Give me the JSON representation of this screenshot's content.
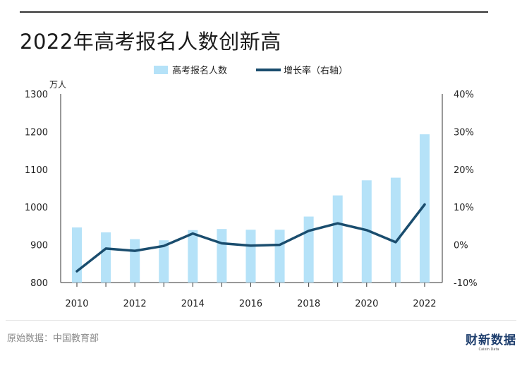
{
  "title": "2022年高考报名人数创新高",
  "source": "原始数据：中国教育部",
  "brand": {
    "name": "财新数据",
    "subtitle": "Caixin Data"
  },
  "chart_data": {
    "type": "bar+line",
    "x": [
      2010,
      2011,
      2012,
      2013,
      2014,
      2015,
      2016,
      2017,
      2018,
      2019,
      2020,
      2021,
      2022
    ],
    "x_tick_labels": [
      "2010",
      "2012",
      "2014",
      "2016",
      "2018",
      "2020",
      "2022"
    ],
    "left_axis": {
      "unit": "万人",
      "ylim": [
        800,
        1300
      ],
      "ticks": [
        "800",
        "900",
        "1000",
        "1100",
        "1200",
        "1300"
      ]
    },
    "right_axis": {
      "ylim": [
        -10,
        40
      ],
      "ticks": [
        "-10%",
        "0%",
        "10%",
        "20%",
        "30%",
        "40%"
      ]
    },
    "series": [
      {
        "name": "高考报名人数",
        "type": "bar",
        "axis": "left",
        "color": "#b5e2f8",
        "values": [
          946,
          933,
          915,
          912,
          939,
          942,
          940,
          940,
          975,
          1031,
          1071,
          1078,
          1193
        ]
      },
      {
        "name": "增长率（右轴）",
        "type": "line",
        "axis": "right",
        "color": "#1a4d6e",
        "values": [
          -7.0,
          -1.0,
          -1.6,
          -0.3,
          3.0,
          0.4,
          -0.2,
          0.0,
          3.7,
          5.7,
          3.9,
          0.7,
          10.7
        ]
      }
    ],
    "legend_position": "top-center",
    "grid": false
  }
}
